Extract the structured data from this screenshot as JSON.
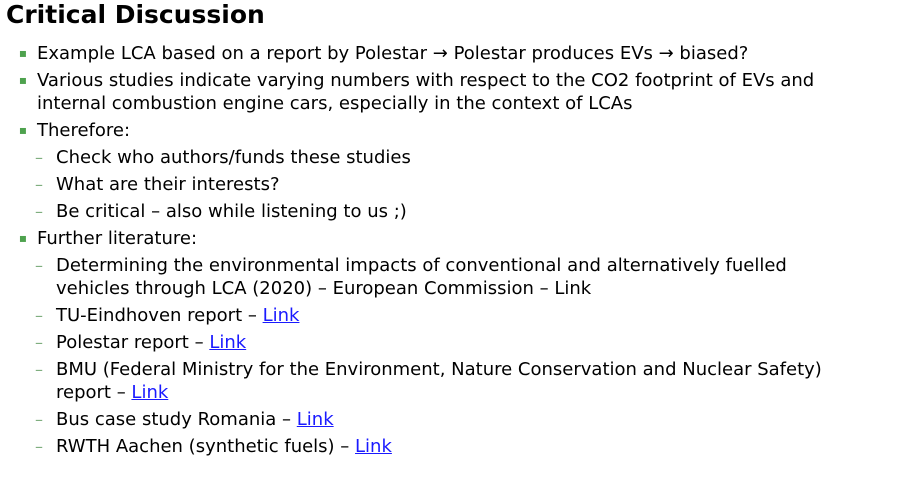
{
  "title": "Critical Discussion",
  "colors": {
    "bullet": "#4ea24e",
    "dash": "#7fae7f",
    "link": "#1a1aff"
  },
  "bullets": {
    "b1": "Example LCA based on a report by Polestar → Polestar produces EVs → biased?",
    "b2_line1": "Various studies indicate varying numbers with respect to the CO2 footprint of EVs and",
    "b2_line2": "internal combustion engine cars, especially in the context of LCAs",
    "b3": "Therefore:",
    "b3_sub": [
      "Check who authors/funds these studies",
      "What are their interests?",
      "Be critical – also while listening to us ;)"
    ],
    "b4": "Further literature:",
    "lit": {
      "ec_line1": "Determining the environmental impacts of conventional and alternatively fuelled",
      "ec_line2": "vehicles through LCA (2020) – European Commission – Link",
      "tue_prefix": "TU-Eindhoven report – ",
      "polestar_prefix": "Polestar report – ",
      "bmu_line1": "BMU (Federal Ministry for the Environment, Nature Conservation and Nuclear Safety)",
      "bmu_prefix2": "report – ",
      "bus_prefix": "Bus case study Romania – ",
      "rwth_prefix": "RWTH Aachen (synthetic fuels) – ",
      "link_label": "Link"
    }
  },
  "bullet_glyph": "▪",
  "dash_glyph": "–"
}
